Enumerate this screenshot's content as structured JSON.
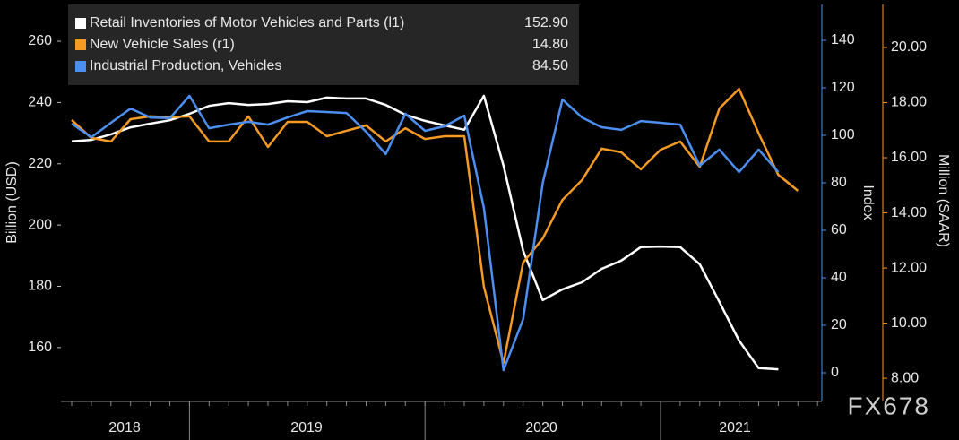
{
  "chart_data": {
    "type": "line",
    "watermark": "FX678",
    "ylabel": "Billion (USD)",
    "y2label": "Index",
    "y3label": "Million (SAAR)",
    "xticks": [
      "2018",
      "2019",
      "2020",
      "2021"
    ],
    "ylim": [
      142.7,
      272
    ],
    "yticks": [
      160,
      180,
      200,
      220,
      240,
      260
    ],
    "y2lim": [
      -11.7,
      155.1
    ],
    "y2ticks": [
      0,
      20,
      40,
      60,
      80,
      100,
      120,
      140
    ],
    "y3lim": [
      7.19,
      21.56
    ],
    "y3ticks": [
      {
        "value": 8,
        "label": "8.00"
      },
      {
        "value": 10,
        "label": "10.00"
      },
      {
        "value": 12,
        "label": "12.00"
      },
      {
        "value": 14,
        "label": "14.00"
      },
      {
        "value": 16,
        "label": "16.00"
      },
      {
        "value": 18,
        "label": "18.00"
      },
      {
        "value": 20,
        "label": "20.00"
      }
    ],
    "series": [
      {
        "name": "Retail Inventories of Motor Vehicles and Parts (l1)",
        "last_label": "152.90",
        "color": "#ffffff",
        "axis": "y",
        "values": [
          227.3,
          227.8,
          229.6,
          231.9,
          233.1,
          234.2,
          236.3,
          238.9,
          239.8,
          239.2,
          239.5,
          240.4,
          240.1,
          241.6,
          241.3,
          241.3,
          239.2,
          236.0,
          234.0,
          232.5,
          231.1,
          242.2,
          219.4,
          191.6,
          175.5,
          179.0,
          181.3,
          185.7,
          188.4,
          192.8,
          193.0,
          192.8,
          187.2,
          174.9,
          162.3,
          153.3,
          152.9,
          null
        ]
      },
      {
        "name": "New Vehicle Sales (r1)",
        "last_label": "14.80",
        "color": "#f59a23",
        "axis": "y3",
        "values": [
          17.37,
          16.72,
          16.59,
          17.4,
          17.5,
          17.47,
          17.5,
          16.59,
          16.59,
          17.5,
          16.39,
          17.3,
          17.3,
          16.78,
          16.98,
          17.17,
          16.59,
          17.07,
          16.68,
          16.78,
          16.78,
          11.32,
          8.55,
          12.2,
          13.07,
          14.47,
          15.19,
          16.33,
          16.2,
          15.58,
          16.29,
          16.59,
          15.67,
          17.79,
          18.5,
          16.88,
          15.38,
          14.8
        ]
      },
      {
        "name": "Industrial Production, Vehicles",
        "last_label": "84.50",
        "color": "#4d8ff0",
        "axis": "y2",
        "values": [
          104.9,
          99.2,
          105.3,
          111.3,
          107.5,
          107.2,
          116.6,
          103.0,
          104.5,
          105.7,
          104.5,
          107.5,
          110.2,
          109.8,
          109.4,
          101.5,
          92.1,
          109.1,
          101.9,
          103.8,
          108.3,
          69.4,
          1.1,
          22.6,
          80.0,
          115.1,
          107.5,
          103.4,
          102.3,
          106.0,
          105.3,
          104.5,
          87.2,
          94.0,
          84.5,
          94.0,
          84.5,
          null
        ]
      }
    ]
  }
}
